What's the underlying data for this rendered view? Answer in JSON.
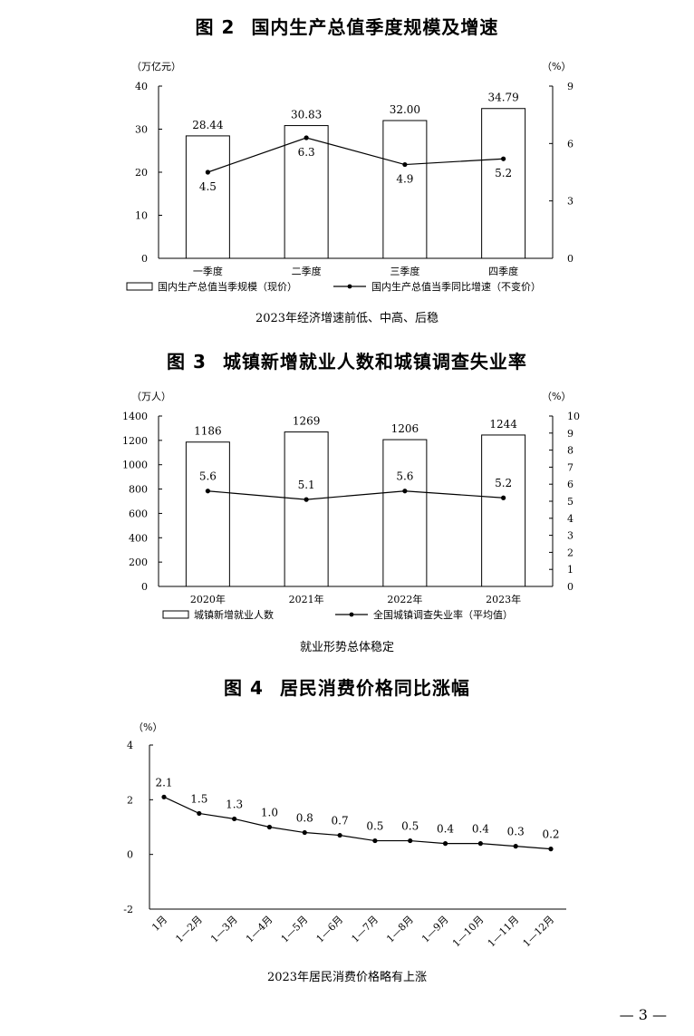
{
  "charts": [
    {
      "title_num": "图 2",
      "title_text": "国内生产总值季度规模及增速",
      "caption": "2023年经济增速前低、中高、后稳"
    },
    {
      "title_num": "图 3",
      "title_text": "城镇新增就业人数和城镇调查失业率",
      "caption": "就业形势总体稳定"
    },
    {
      "title_num": "图 4",
      "title_text": "居民消费价格同比涨幅",
      "caption": "2023年居民消费价格略有上涨"
    }
  ],
  "page_number": "— 3 —",
  "chart_data": [
    {
      "type": "bar",
      "title": "国内生产总值季度规模及增速",
      "categories": [
        "一季度",
        "二季度",
        "三季度",
        "四季度"
      ],
      "left_unit": "（万亿元）",
      "right_unit": "（%）",
      "left_ylim": [
        0,
        40
      ],
      "left_ticks": [
        0,
        10,
        20,
        30,
        40
      ],
      "right_ylim": [
        0,
        9
      ],
      "right_ticks": [
        0,
        3,
        6,
        9
      ],
      "series": [
        {
          "name": "国内生产总值当季规模（现价）",
          "kind": "bar",
          "axis": "left",
          "values": [
            28.44,
            30.83,
            32.0,
            34.79
          ],
          "labels": [
            "28.44",
            "30.83",
            "32.00",
            "34.79"
          ]
        },
        {
          "name": "国内生产总值当季同比增速（不变价）",
          "kind": "line",
          "axis": "right",
          "values": [
            4.5,
            6.3,
            4.9,
            5.2
          ],
          "labels": [
            "4.5",
            "6.3",
            "4.9",
            "5.2"
          ]
        }
      ],
      "legend": "bottom"
    },
    {
      "type": "bar",
      "title": "城镇新增就业人数和城镇调查失业率",
      "categories": [
        "2020年",
        "2021年",
        "2022年",
        "2023年"
      ],
      "left_unit": "（万人）",
      "right_unit": "（%）",
      "left_ylim": [
        0,
        1400
      ],
      "left_ticks": [
        0,
        200,
        400,
        600,
        800,
        1000,
        1200,
        1400
      ],
      "right_ylim": [
        0,
        10
      ],
      "right_ticks": [
        0,
        1,
        2,
        3,
        4,
        5,
        6,
        7,
        8,
        9,
        10
      ],
      "series": [
        {
          "name": "城镇新增就业人数",
          "kind": "bar",
          "axis": "left",
          "values": [
            1186,
            1269,
            1206,
            1244
          ],
          "labels": [
            "1186",
            "1269",
            "1206",
            "1244"
          ]
        },
        {
          "name": "全国城镇调查失业率（平均值）",
          "kind": "line",
          "axis": "right",
          "values": [
            5.6,
            5.1,
            5.6,
            5.2
          ],
          "labels": [
            "5.6",
            "5.1",
            "5.6",
            "5.2"
          ]
        }
      ],
      "legend": "bottom"
    },
    {
      "type": "line",
      "title": "居民消费价格同比涨幅",
      "categories": [
        "1月",
        "1—2月",
        "1—3月",
        "1—4月",
        "1—5月",
        "1—6月",
        "1—7月",
        "1—8月",
        "1—9月",
        "1—10月",
        "1—11月",
        "1—12月"
      ],
      "unit": "（%）",
      "ylim": [
        -2,
        4
      ],
      "ticks": [
        -2,
        0,
        2,
        4
      ],
      "series": [
        {
          "kind": "line",
          "values": [
            2.1,
            1.5,
            1.3,
            1.0,
            0.8,
            0.7,
            0.5,
            0.5,
            0.4,
            0.4,
            0.3,
            0.2
          ],
          "labels": [
            "2.1",
            "1.5",
            "1.3",
            "1.0",
            "0.8",
            "0.7",
            "0.5",
            "0.5",
            "0.4",
            "0.4",
            "0.3",
            "0.2"
          ]
        }
      ]
    }
  ]
}
